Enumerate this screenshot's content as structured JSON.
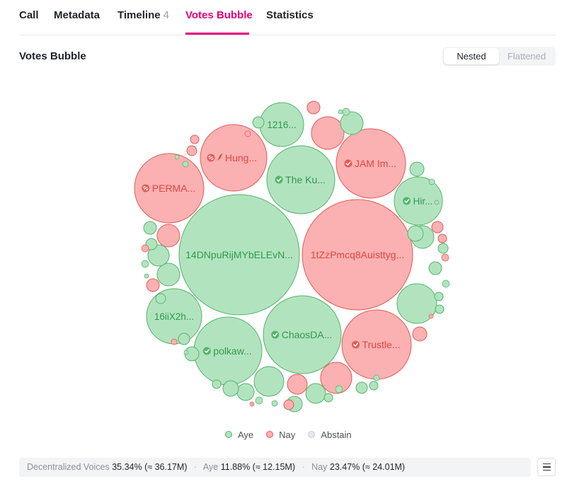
{
  "tabs": [
    {
      "label": "Call"
    },
    {
      "label": "Metadata"
    },
    {
      "label": "Timeline",
      "count": "4"
    },
    {
      "label": "Votes Bubble"
    },
    {
      "label": "Statistics"
    }
  ],
  "section_title": "Votes Bubble",
  "view_toggle": {
    "nested": "Nested",
    "flattened": "Flattened"
  },
  "legend": [
    {
      "label": "Aye",
      "color": "#8fd9a0"
    },
    {
      "label": "Nay",
      "color": "#f59f9f"
    },
    {
      "label": "Abstain",
      "color": "#dde0e4"
    }
  ],
  "summary": {
    "dv_label": "Decentralized Voices",
    "dv_value": "35.34% (≈ 36.17M)",
    "aye_label": "Aye",
    "aye_value": "11.88% (≈ 12.15M)",
    "nay_label": "Nay",
    "nay_value": "23.47% (≈ 24.01M)"
  },
  "colors": {
    "aye_fill": "#b2e3bf",
    "aye_stroke": "#52b56a",
    "aye_text": "#2f9a4c",
    "nay_fill": "#fbb1b1",
    "nay_stroke": "#e45a5a",
    "nay_text": "#e04545",
    "accent": "#e6007a"
  },
  "chart_data": {
    "type": "bubble",
    "bubbles": [
      {
        "label": "14DNpuRijMYbELEvN...",
        "vote": "aye",
        "size": 85
      },
      {
        "label": "1tZzPmcq8Auisttyg...",
        "vote": "nay",
        "size": 78
      },
      {
        "label": "ChaosDA...",
        "vote": "aye",
        "size": 55,
        "badge": "check"
      },
      {
        "label": "The Ku...",
        "vote": "aye",
        "size": 48,
        "badge": "check"
      },
      {
        "label": "Trustle...",
        "vote": "nay",
        "size": 49,
        "badge": "check"
      },
      {
        "label": "JAM Im...",
        "vote": "nay",
        "size": 49,
        "badge": "check"
      },
      {
        "label": "PERMA...",
        "vote": "nay",
        "size": 49,
        "badge": "link"
      },
      {
        "label": "Hung...",
        "vote": "nay",
        "size": 47,
        "badge": "link-pepper"
      },
      {
        "label": "polkaw...",
        "vote": "aye",
        "size": 48,
        "badge": "check"
      },
      {
        "label": "16iiX2h...",
        "vote": "aye",
        "size": 39
      },
      {
        "label": "Hir...",
        "vote": "aye",
        "size": 34,
        "badge": "check"
      },
      {
        "label": "1216...",
        "vote": "aye",
        "size": 31
      },
      {
        "vote": "aye",
        "size": 28
      },
      {
        "vote": "nay",
        "size": 23
      },
      {
        "vote": "nay",
        "size": 22
      },
      {
        "vote": "aye",
        "size": 21
      },
      {
        "vote": "nay",
        "size": 16
      },
      {
        "vote": "aye",
        "size": 16
      },
      {
        "vote": "aye",
        "size": 16
      },
      {
        "vote": "aye",
        "size": 16
      },
      {
        "vote": "aye",
        "size": 15
      },
      {
        "vote": "aye",
        "size": 14
      },
      {
        "vote": "nay",
        "size": 14
      },
      {
        "vote": "aye",
        "size": 13
      },
      {
        "vote": "aye",
        "size": 12
      },
      {
        "vote": "aye",
        "size": 12
      },
      {
        "vote": "aye",
        "size": 11
      },
      {
        "vote": "aye",
        "size": 11
      },
      {
        "vote": "nay",
        "size": 10
      },
      {
        "vote": "aye",
        "size": 10
      },
      {
        "vote": "nay",
        "size": 9
      },
      {
        "vote": "aye",
        "size": 9
      },
      {
        "vote": "aye",
        "size": 9
      },
      {
        "vote": "nay",
        "size": 9
      },
      {
        "vote": "aye",
        "size": 8
      },
      {
        "vote": "nay",
        "size": 8
      },
      {
        "vote": "aye",
        "size": 8
      },
      {
        "vote": "aye",
        "size": 7
      },
      {
        "vote": "aye",
        "size": 7
      },
      {
        "vote": "nay",
        "size": 7
      },
      {
        "vote": "aye",
        "size": 7
      },
      {
        "vote": "aye",
        "size": 6
      },
      {
        "vote": "nay",
        "size": 6
      },
      {
        "vote": "aye",
        "size": 6
      },
      {
        "vote": "aye",
        "size": 6
      },
      {
        "vote": "nay",
        "size": 6
      },
      {
        "vote": "aye",
        "size": 5
      },
      {
        "vote": "aye",
        "size": 5
      },
      {
        "vote": "nay",
        "size": 5
      },
      {
        "vote": "aye",
        "size": 5
      },
      {
        "vote": "aye",
        "size": 5
      },
      {
        "vote": "aye",
        "size": 4
      },
      {
        "vote": "nay",
        "size": 4
      },
      {
        "vote": "aye",
        "size": 4
      },
      {
        "vote": "aye",
        "size": 4
      },
      {
        "vote": "nay",
        "size": 4
      },
      {
        "vote": "aye",
        "size": 4
      },
      {
        "vote": "aye",
        "size": 3
      },
      {
        "vote": "nay",
        "size": 3
      },
      {
        "vote": "aye",
        "size": 3
      },
      {
        "vote": "aye",
        "size": 3
      },
      {
        "vote": "nay",
        "size": 3
      },
      {
        "vote": "aye",
        "size": 3
      },
      {
        "vote": "aye",
        "size": 2
      },
      {
        "vote": "aye",
        "size": 2
      },
      {
        "vote": "nay",
        "size": 2
      },
      {
        "vote": "aye",
        "size": 2
      },
      {
        "vote": "aye",
        "size": 2
      },
      {
        "vote": "nay",
        "size": 2
      },
      {
        "vote": "aye",
        "size": 2
      }
    ]
  }
}
